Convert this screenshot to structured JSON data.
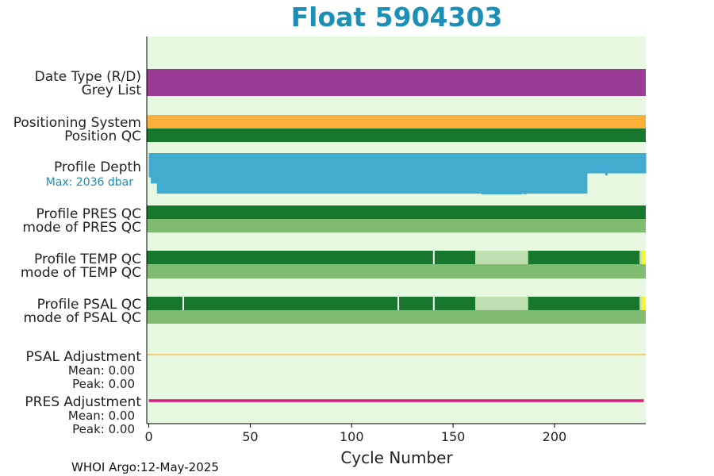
{
  "chart_data": {
    "type": "bar",
    "title": "Float 5904303",
    "xlabel": "Cycle Number",
    "xlim": [
      -1,
      245
    ],
    "xticks": [
      0,
      50,
      100,
      150,
      200
    ],
    "footer": "WHOI Argo:12-May-2025",
    "colors": {
      "background": "#e6f8e0",
      "purple": "#9a3b96",
      "orange": "#fbb03b",
      "dark_green": "#17782d",
      "light_green": "#7fbc70",
      "pale_green": "#bfdfb0",
      "yellow": "#f7f726",
      "blue": "#42abd0",
      "magenta": "#d81b79",
      "label_blue": "#1b8fb6"
    },
    "rows": [
      {
        "label": "Date Type (R/D)"
      },
      {
        "label": "Grey List"
      },
      {
        "label": "Positioning System"
      },
      {
        "label": "Position QC"
      },
      {
        "label": "Profile Depth",
        "sublabel": "Max: 2036 dbar"
      },
      {
        "label": "Profile PRES QC"
      },
      {
        "label": "mode of PRES QC"
      },
      {
        "label": "Profile TEMP QC"
      },
      {
        "label": "mode of TEMP QC"
      },
      {
        "label": "Profile PSAL QC"
      },
      {
        "label": "mode of PSAL QC"
      },
      {
        "label": "PSAL Adjustment",
        "mean_text": "Mean: 0.00",
        "peak_text": "Peak: 0.00"
      },
      {
        "label": "PRES Adjustment",
        "mean_text": "Mean: 0.00",
        "peak_text": "Peak: 0.00"
      }
    ],
    "segments": {
      "date_type": [
        {
          "from": -1,
          "to": 245,
          "color": "purple"
        }
      ],
      "positioning_system": [
        {
          "from": -1,
          "to": 245,
          "color": "orange"
        }
      ],
      "position_qc": [
        {
          "from": -1,
          "to": 245,
          "color": "dark_green"
        }
      ],
      "profile_pres_qc": [
        {
          "from": -1,
          "to": 245,
          "color": "dark_green"
        }
      ],
      "mode_pres_qc": [
        {
          "from": -1,
          "to": 245,
          "color": "light_green"
        }
      ],
      "profile_temp_qc": [
        {
          "from": -1,
          "to": 161,
          "color": "dark_green"
        },
        {
          "from": 161,
          "to": 187,
          "color": "pale_green"
        },
        {
          "from": 187,
          "to": 242,
          "color": "dark_green"
        },
        {
          "from": 242,
          "to": 243,
          "color": "pale_green"
        },
        {
          "from": 243,
          "to": 245,
          "color": "yellow"
        }
      ],
      "mode_temp_qc": [
        {
          "from": -1,
          "to": 245,
          "color": "light_green"
        }
      ],
      "profile_psal_qc": [
        {
          "from": -1,
          "to": 161,
          "color": "dark_green"
        },
        {
          "from": 161,
          "to": 187,
          "color": "pale_green"
        },
        {
          "from": 187,
          "to": 242,
          "color": "dark_green"
        },
        {
          "from": 242,
          "to": 243,
          "color": "pale_green"
        },
        {
          "from": 243,
          "to": 245,
          "color": "yellow"
        }
      ],
      "mode_psal_qc": [
        {
          "from": -1,
          "to": 245,
          "color": "light_green"
        }
      ]
    },
    "temp_qc_gaps": [
      140.5
    ],
    "psal_qc_gaps": [
      17,
      123,
      140.5
    ],
    "profile_depth_max_dbar": 2036,
    "profile_depth": [
      {
        "from": 0,
        "to": 1,
        "depth": 1200
      },
      {
        "from": 1,
        "to": 4,
        "depth": 1500
      },
      {
        "from": 4,
        "to": 164,
        "depth": 2000
      },
      {
        "from": 164,
        "to": 184,
        "depth": 2036
      },
      {
        "from": 184,
        "to": 185,
        "depth": 2000
      },
      {
        "from": 185,
        "to": 186,
        "depth": 2030
      },
      {
        "from": 186,
        "to": 216,
        "depth": 2000
      },
      {
        "from": 216,
        "to": 225,
        "depth": 1000
      },
      {
        "from": 225,
        "to": 226,
        "depth": 1100
      },
      {
        "from": 226,
        "to": 245,
        "depth": 1000
      }
    ],
    "psal_adjustment_values": [
      {
        "from": -1,
        "to": 245,
        "value": 0.0
      }
    ],
    "pres_adjustment_values": [
      {
        "from": 0,
        "to": 244,
        "value": 0.0
      }
    ]
  }
}
